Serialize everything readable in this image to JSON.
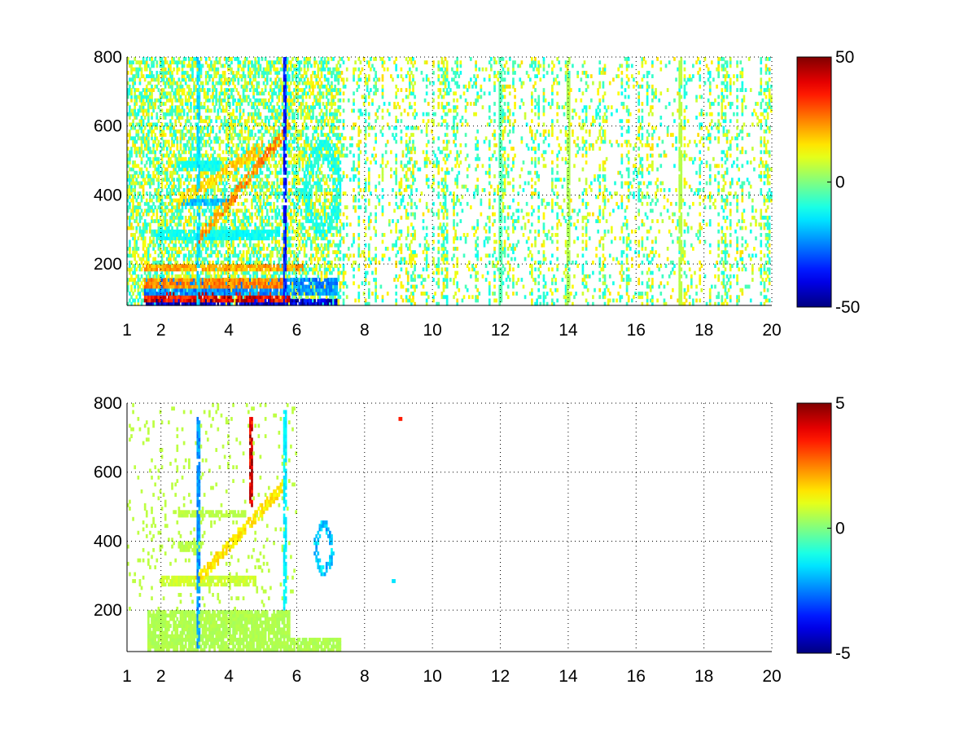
{
  "chart_data": [
    {
      "type": "heatmap",
      "x_ticks": [
        "1",
        "2",
        "4",
        "6",
        "8",
        "10",
        "12",
        "14",
        "16",
        "18",
        "20"
      ],
      "x_tick_values": [
        1,
        2,
        4,
        6,
        8,
        10,
        12,
        14,
        16,
        18,
        20
      ],
      "y_ticks": [
        "200",
        "400",
        "600",
        "800"
      ],
      "y_tick_values": [
        200,
        400,
        600,
        800
      ],
      "xlim": [
        1,
        20
      ],
      "ylim": [
        80,
        800
      ],
      "grid": true,
      "colormap": "jet",
      "colorbar": {
        "min": -50,
        "max": 50,
        "ticks": [
          "50",
          "0",
          "-50"
        ],
        "tick_values": [
          50,
          0,
          -50
        ]
      },
      "features": [
        {
          "kind": "band",
          "x": [
            1.5,
            7.2
          ],
          "y": [
            80,
            95
          ],
          "value": -45
        },
        {
          "kind": "band",
          "x": [
            1.5,
            5.8
          ],
          "y": [
            95,
            115
          ],
          "value": 40
        },
        {
          "kind": "band",
          "x": [
            1.5,
            7.2
          ],
          "y": [
            115,
            160
          ],
          "value": -25
        },
        {
          "kind": "band",
          "x": [
            1.5,
            5.6
          ],
          "y": [
            135,
            160
          ],
          "value": 25
        },
        {
          "kind": "band",
          "x": [
            1.5,
            6.2
          ],
          "y": [
            180,
            200
          ],
          "value": 22
        },
        {
          "kind": "band",
          "x": [
            1.8,
            5.5
          ],
          "y": [
            270,
            295
          ],
          "value": -12
        },
        {
          "kind": "band",
          "x": [
            2.5,
            4.0
          ],
          "y": [
            370,
            390
          ],
          "value": -20
        },
        {
          "kind": "band",
          "x": [
            2.5,
            3.8
          ],
          "y": [
            470,
            495
          ],
          "value": -12
        },
        {
          "kind": "diagonal",
          "x": [
            3.0,
            5.8
          ],
          "y": [
            260,
            600
          ],
          "value": 25
        },
        {
          "kind": "diagonal",
          "x": [
            2.5,
            5.0
          ],
          "y": [
            380,
            540
          ],
          "value": 18
        },
        {
          "kind": "line",
          "x": 5.65,
          "y": [
            80,
            800
          ],
          "value": -40
        },
        {
          "kind": "line",
          "x": 3.1,
          "y": [
            80,
            800
          ],
          "value": -18
        },
        {
          "kind": "line",
          "x": 12.0,
          "y": [
            80,
            800
          ],
          "value": -5
        },
        {
          "kind": "line",
          "x": 14.0,
          "y": [
            80,
            800
          ],
          "value": 5
        },
        {
          "kind": "line",
          "x": 17.3,
          "y": [
            80,
            800
          ],
          "value": 6
        },
        {
          "kind": "blob",
          "x": [
            6.2,
            7.3
          ],
          "y": [
            280,
            560
          ],
          "value": -10
        }
      ]
    },
    {
      "type": "heatmap",
      "x_ticks": [
        "1",
        "2",
        "4",
        "6",
        "8",
        "10",
        "12",
        "14",
        "16",
        "18",
        "20"
      ],
      "x_tick_values": [
        1,
        2,
        4,
        6,
        8,
        10,
        12,
        14,
        16,
        18,
        20
      ],
      "y_ticks": [
        "200",
        "400",
        "600",
        "800"
      ],
      "y_tick_values": [
        200,
        400,
        600,
        800
      ],
      "xlim": [
        1,
        20
      ],
      "ylim": [
        80,
        800
      ],
      "grid": true,
      "colormap": "jet",
      "colorbar": {
        "min": -5,
        "max": 5,
        "ticks": [
          "5",
          "0",
          "-5"
        ],
        "tick_values": [
          5,
          0,
          -5
        ]
      },
      "features": [
        {
          "kind": "band",
          "x": [
            1.6,
            7.3
          ],
          "y": [
            80,
            120
          ],
          "value": 0.5
        },
        {
          "kind": "band",
          "x": [
            1.6,
            5.8
          ],
          "y": [
            120,
            200
          ],
          "value": 0.5
        },
        {
          "kind": "band",
          "x": [
            2.0,
            4.8
          ],
          "y": [
            275,
            295
          ],
          "value": 0.8
        },
        {
          "kind": "band",
          "x": [
            2.5,
            3.2
          ],
          "y": [
            375,
            395
          ],
          "value": 0.6
        },
        {
          "kind": "band",
          "x": [
            2.5,
            4.5
          ],
          "y": [
            470,
            490
          ],
          "value": 0.6
        },
        {
          "kind": "diagonal",
          "x": [
            3.0,
            5.6
          ],
          "y": [
            280,
            560
          ],
          "value": 1.5
        },
        {
          "kind": "line",
          "x": 5.65,
          "y": [
            200,
            780
          ],
          "value": -1.5
        },
        {
          "kind": "line",
          "x": 3.1,
          "y": [
            90,
            760
          ],
          "value": -2.5
        },
        {
          "kind": "line",
          "x": 4.65,
          "y": [
            500,
            760
          ],
          "value": 4.5
        },
        {
          "kind": "blob",
          "x": [
            6.5,
            7.1
          ],
          "y": [
            300,
            460
          ],
          "value": -1.8
        },
        {
          "kind": "dot",
          "x": 9.05,
          "y": 755,
          "value": 3.5
        },
        {
          "kind": "dot",
          "x": 8.85,
          "y": 285,
          "value": -1.5
        }
      ]
    }
  ]
}
